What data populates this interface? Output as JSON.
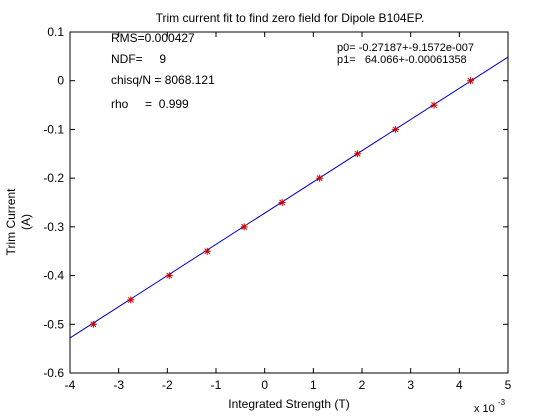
{
  "chart_data": {
    "type": "scatter",
    "title": "Trim current fit to find zero field for Dipole B104EP.",
    "xlabel": "Integrated Strength (T)",
    "ylabel_lines": [
      "Trim Current",
      "(A)"
    ],
    "x_multiplier_label": "x 10",
    "x_multiplier_exponent": "-3",
    "xlim": [
      -4,
      5
    ],
    "ylim": [
      -0.6,
      0.1
    ],
    "xticks": [
      -4,
      -3,
      -2,
      -1,
      0,
      1,
      2,
      3,
      4,
      5
    ],
    "xtick_labels": [
      "-4",
      "-3",
      "-2",
      "-1",
      "0",
      "1",
      "2",
      "3",
      "4",
      "5"
    ],
    "yticks": [
      -0.6,
      -0.5,
      -0.4,
      -0.3,
      -0.2,
      -0.1,
      0,
      0.1
    ],
    "ytick_labels": [
      "-0.6",
      "-0.5",
      "-0.4",
      "-0.3",
      "-0.2",
      "-0.1",
      "0",
      "0.1"
    ],
    "grid": false,
    "marker_color": "#cc0000",
    "fit_color": "#0000cc",
    "series": [
      {
        "x": [
          -3.52,
          -2.75,
          -1.96,
          -1.18,
          -0.42,
          0.36,
          1.13,
          1.91,
          2.69,
          3.48,
          4.23
        ],
        "y": [
          -0.5,
          -0.45,
          -0.4,
          -0.35,
          -0.3,
          -0.25,
          -0.2,
          -0.15,
          -0.1,
          -0.05,
          0.0
        ]
      }
    ],
    "fit_line": {
      "x": [
        -4,
        5
      ],
      "y": [
        -0.5281,
        0.0485
      ]
    },
    "annotations_left": [
      "RMS=0.000427",
      "NDF=     9",
      "chisq/N = 8068.121",
      "rho     =  0.999"
    ],
    "annotations_right": [
      "p0= -0.27187+-9.1572e-007",
      "p1=   64.066+-0.00061358"
    ]
  }
}
